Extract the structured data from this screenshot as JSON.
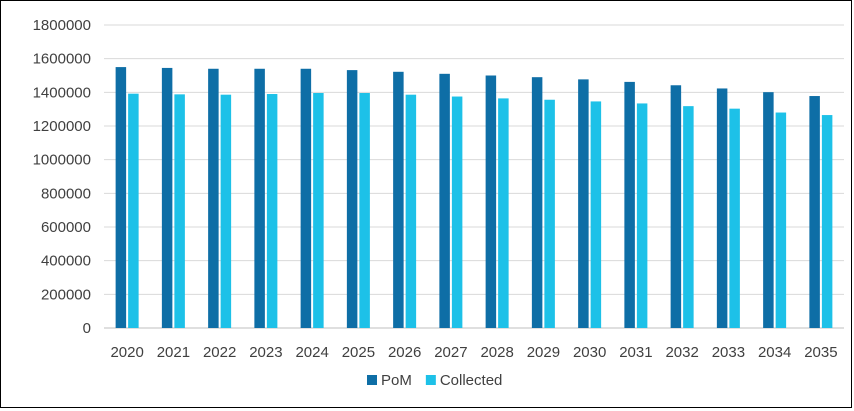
{
  "chart_data": {
    "type": "bar",
    "categories": [
      "2020",
      "2021",
      "2022",
      "2023",
      "2024",
      "2025",
      "2026",
      "2027",
      "2028",
      "2029",
      "2030",
      "2031",
      "2032",
      "2033",
      "2034",
      "2035"
    ],
    "series": [
      {
        "name": "PoM",
        "color": "#0E6EA6",
        "values": [
          1550000,
          1545000,
          1540000,
          1540000,
          1540000,
          1532000,
          1522000,
          1510000,
          1500000,
          1490000,
          1477000,
          1462000,
          1442000,
          1423000,
          1401000,
          1378000
        ]
      },
      {
        "name": "Collected",
        "color": "#1DC1E8",
        "values": [
          1392000,
          1388000,
          1386000,
          1390000,
          1396000,
          1396000,
          1386000,
          1375000,
          1364000,
          1356000,
          1346000,
          1334000,
          1318000,
          1303000,
          1280000,
          1265000
        ]
      }
    ],
    "ylim": [
      0,
      1800000
    ],
    "yticks": [
      "0",
      "200000",
      "400000",
      "600000",
      "800000",
      "1000000",
      "1200000",
      "1400000",
      "1600000",
      "1800000"
    ],
    "grid": true,
    "legend_position": "bottom",
    "title": "",
    "xlabel": "",
    "ylabel": ""
  }
}
